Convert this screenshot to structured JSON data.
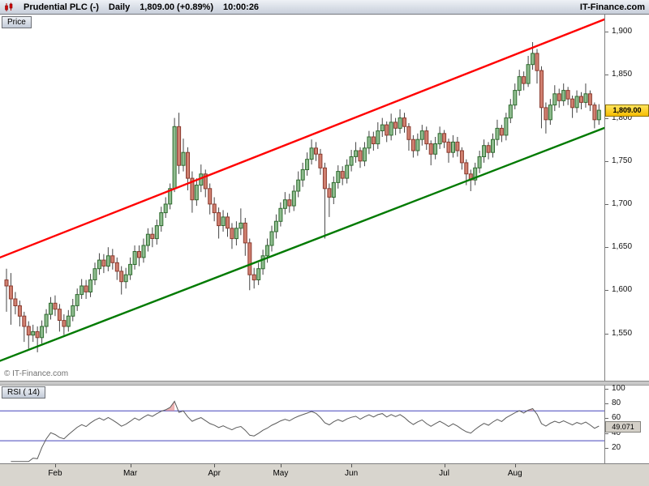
{
  "title_bar": {
    "instrument": "Prudential PLC (-)",
    "timeframe": "Daily",
    "quote": "1,809.00 (+0.89%)",
    "time": "10:00:26",
    "brand": "IT-Finance.com"
  },
  "price_panel": {
    "tab_label": "Price",
    "watermark": "© IT-Finance.com",
    "last_price_label": "1,809.00"
  },
  "rsi_panel": {
    "tab_label": "RSI ( 14)",
    "value_label": "49.071"
  },
  "colors": {
    "candle_up_fill": "#8fbc8f",
    "candle_up_border": "#2e6b2e",
    "candle_down_fill": "#d08070",
    "candle_down_border": "#8b3a2e",
    "wick": "#444444",
    "trend_resistance": "#ff0000",
    "trend_support": "#007a00",
    "rsi_line": "#5a5a5a",
    "rsi_zone": "#4444bb",
    "rsi_overbought": "rgba(226,128,128,0.6)",
    "badge_price_bg": "#fcbf00",
    "badge_rsi_bg": "#d4d0c8"
  },
  "chart_data": [
    {
      "type": "candlestick",
      "title": "Prudential PLC Daily price",
      "ylabel": "Price",
      "ylim": [
        1495,
        1920
      ],
      "grid": false,
      "yticks": [
        {
          "v": 1900,
          "label": "1,900"
        },
        {
          "v": 1850,
          "label": "1,850"
        },
        {
          "v": 1800,
          "label": "1,800"
        },
        {
          "v": 1750,
          "label": "1,750"
        },
        {
          "v": 1700,
          "label": "1,700"
        },
        {
          "v": 1650,
          "label": "1,650"
        },
        {
          "v": 1600,
          "label": "1,600"
        },
        {
          "v": 1550,
          "label": "1,550"
        }
      ],
      "xticks": [
        {
          "label": "Feb",
          "i": 11
        },
        {
          "label": "Mar",
          "i": 28
        },
        {
          "label": "Apr",
          "i": 47
        },
        {
          "label": "May",
          "i": 62
        },
        {
          "label": "Jun",
          "i": 78
        },
        {
          "label": "Jul",
          "i": 99
        },
        {
          "label": "Aug",
          "i": 115
        }
      ],
      "last_price": 1809.0,
      "trendlines": [
        {
          "name": "resistance",
          "color": "#ff0000",
          "from": {
            "i": -2,
            "price": 1637
          },
          "to": {
            "i": 136,
            "price": 1916
          }
        },
        {
          "name": "support",
          "color": "#007a00",
          "from": {
            "i": -2,
            "price": 1517
          },
          "to": {
            "i": 136,
            "price": 1790
          }
        }
      ],
      "candles": [
        [
          1612,
          1625,
          1575,
          1605
        ],
        [
          1605,
          1620,
          1560,
          1590
        ],
        [
          1590,
          1598,
          1572,
          1582
        ],
        [
          1582,
          1588,
          1558,
          1570
        ],
        [
          1570,
          1575,
          1540,
          1558
        ],
        [
          1558,
          1564,
          1532,
          1548
        ],
        [
          1548,
          1560,
          1540,
          1552
        ],
        [
          1552,
          1558,
          1528,
          1545
        ],
        [
          1545,
          1565,
          1538,
          1558
        ],
        [
          1558,
          1578,
          1550,
          1572
        ],
        [
          1572,
          1592,
          1566,
          1585
        ],
        [
          1585,
          1594,
          1570,
          1578
        ],
        [
          1578,
          1584,
          1552,
          1565
        ],
        [
          1565,
          1572,
          1548,
          1558
        ],
        [
          1558,
          1577,
          1552,
          1570
        ],
        [
          1570,
          1590,
          1564,
          1582
        ],
        [
          1582,
          1602,
          1576,
          1595
        ],
        [
          1595,
          1613,
          1590,
          1605
        ],
        [
          1605,
          1612,
          1590,
          1598
        ],
        [
          1598,
          1619,
          1592,
          1612
        ],
        [
          1612,
          1632,
          1606,
          1625
        ],
        [
          1625,
          1643,
          1618,
          1635
        ],
        [
          1635,
          1642,
          1620,
          1628
        ],
        [
          1628,
          1650,
          1622,
          1640
        ],
        [
          1640,
          1648,
          1624,
          1632
        ],
        [
          1632,
          1638,
          1612,
          1622
        ],
        [
          1622,
          1628,
          1595,
          1610
        ],
        [
          1610,
          1626,
          1602,
          1618
        ],
        [
          1618,
          1638,
          1612,
          1630
        ],
        [
          1630,
          1652,
          1624,
          1645
        ],
        [
          1645,
          1652,
          1628,
          1638
        ],
        [
          1638,
          1660,
          1632,
          1652
        ],
        [
          1652,
          1672,
          1645,
          1665
        ],
        [
          1665,
          1673,
          1650,
          1660
        ],
        [
          1660,
          1682,
          1653,
          1675
        ],
        [
          1675,
          1697,
          1668,
          1690
        ],
        [
          1690,
          1708,
          1684,
          1700
        ],
        [
          1700,
          1724,
          1694,
          1718
        ],
        [
          1718,
          1800,
          1714,
          1790
        ],
        [
          1790,
          1806,
          1735,
          1745
        ],
        [
          1745,
          1776,
          1738,
          1760
        ],
        [
          1760,
          1766,
          1716,
          1730
        ],
        [
          1730,
          1738,
          1690,
          1705
        ],
        [
          1705,
          1730,
          1698,
          1722
        ],
        [
          1722,
          1746,
          1714,
          1735
        ],
        [
          1735,
          1740,
          1708,
          1718
        ],
        [
          1718,
          1724,
          1688,
          1700
        ],
        [
          1700,
          1708,
          1680,
          1690
        ],
        [
          1690,
          1696,
          1660,
          1675
        ],
        [
          1675,
          1693,
          1668,
          1685
        ],
        [
          1685,
          1690,
          1662,
          1672
        ],
        [
          1672,
          1678,
          1648,
          1660
        ],
        [
          1660,
          1680,
          1652,
          1672
        ],
        [
          1672,
          1695,
          1664,
          1678
        ],
        [
          1678,
          1684,
          1640,
          1655
        ],
        [
          1655,
          1660,
          1600,
          1618
        ],
        [
          1618,
          1626,
          1602,
          1612
        ],
        [
          1612,
          1632,
          1606,
          1625
        ],
        [
          1625,
          1647,
          1618,
          1640
        ],
        [
          1640,
          1660,
          1632,
          1652
        ],
        [
          1652,
          1675,
          1645,
          1668
        ],
        [
          1668,
          1688,
          1660,
          1680
        ],
        [
          1680,
          1702,
          1674,
          1695
        ],
        [
          1695,
          1714,
          1688,
          1705
        ],
        [
          1705,
          1712,
          1690,
          1698
        ],
        [
          1698,
          1722,
          1692,
          1715
        ],
        [
          1715,
          1738,
          1708,
          1728
        ],
        [
          1728,
          1748,
          1720,
          1740
        ],
        [
          1740,
          1760,
          1733,
          1752
        ],
        [
          1752,
          1775,
          1746,
          1765
        ],
        [
          1765,
          1772,
          1750,
          1758
        ],
        [
          1758,
          1764,
          1734,
          1742
        ],
        [
          1742,
          1748,
          1660,
          1718
        ],
        [
          1718,
          1724,
          1685,
          1708
        ],
        [
          1708,
          1732,
          1700,
          1725
        ],
        [
          1725,
          1745,
          1718,
          1738
        ],
        [
          1738,
          1744,
          1722,
          1730
        ],
        [
          1730,
          1752,
          1724,
          1745
        ],
        [
          1745,
          1763,
          1738,
          1755
        ],
        [
          1755,
          1772,
          1748,
          1762
        ],
        [
          1762,
          1766,
          1742,
          1750
        ],
        [
          1750,
          1772,
          1744,
          1765
        ],
        [
          1765,
          1785,
          1758,
          1778
        ],
        [
          1778,
          1784,
          1762,
          1770
        ],
        [
          1770,
          1795,
          1764,
          1785
        ],
        [
          1785,
          1800,
          1778,
          1792
        ],
        [
          1792,
          1796,
          1772,
          1780
        ],
        [
          1780,
          1805,
          1774,
          1795
        ],
        [
          1795,
          1800,
          1780,
          1788
        ],
        [
          1788,
          1810,
          1782,
          1800
        ],
        [
          1800,
          1806,
          1783,
          1790
        ],
        [
          1790,
          1794,
          1762,
          1775
        ],
        [
          1775,
          1780,
          1754,
          1762
        ],
        [
          1762,
          1782,
          1756,
          1775
        ],
        [
          1775,
          1792,
          1768,
          1785
        ],
        [
          1785,
          1790,
          1763,
          1770
        ],
        [
          1770,
          1774,
          1745,
          1758
        ],
        [
          1758,
          1778,
          1752,
          1770
        ],
        [
          1770,
          1790,
          1764,
          1782
        ],
        [
          1782,
          1786,
          1765,
          1772
        ],
        [
          1772,
          1776,
          1748,
          1760
        ],
        [
          1760,
          1780,
          1754,
          1772
        ],
        [
          1772,
          1778,
          1755,
          1762
        ],
        [
          1762,
          1766,
          1740,
          1748
        ],
        [
          1748,
          1752,
          1722,
          1735
        ],
        [
          1735,
          1740,
          1715,
          1728
        ],
        [
          1728,
          1748,
          1722,
          1742
        ],
        [
          1742,
          1762,
          1736,
          1755
        ],
        [
          1755,
          1775,
          1748,
          1768
        ],
        [
          1768,
          1772,
          1752,
          1760
        ],
        [
          1760,
          1782,
          1754,
          1775
        ],
        [
          1775,
          1798,
          1768,
          1788
        ],
        [
          1788,
          1792,
          1772,
          1780
        ],
        [
          1780,
          1806,
          1774,
          1800
        ],
        [
          1800,
          1822,
          1794,
          1815
        ],
        [
          1815,
          1840,
          1810,
          1832
        ],
        [
          1832,
          1856,
          1826,
          1848
        ],
        [
          1848,
          1854,
          1832,
          1840
        ],
        [
          1840,
          1872,
          1836,
          1862
        ],
        [
          1862,
          1888,
          1856,
          1875
        ],
        [
          1875,
          1880,
          1840,
          1855
        ],
        [
          1855,
          1860,
          1788,
          1812
        ],
        [
          1812,
          1818,
          1782,
          1798
        ],
        [
          1798,
          1822,
          1792,
          1815
        ],
        [
          1815,
          1838,
          1808,
          1828
        ],
        [
          1828,
          1834,
          1812,
          1820
        ],
        [
          1820,
          1840,
          1814,
          1832
        ],
        [
          1832,
          1836,
          1815,
          1822
        ],
        [
          1822,
          1826,
          1800,
          1812
        ],
        [
          1812,
          1832,
          1806,
          1825
        ],
        [
          1825,
          1830,
          1810,
          1818
        ],
        [
          1818,
          1840,
          1812,
          1828
        ],
        [
          1828,
          1832,
          1808,
          1815
        ],
        [
          1815,
          1818,
          1788,
          1798
        ],
        [
          1798,
          1816,
          1792,
          1809
        ]
      ]
    },
    {
      "type": "line",
      "title": "RSI ( 14)",
      "period": 14,
      "values_computed_from": "candles closes",
      "ylim": [
        0,
        104
      ],
      "zones": [
        70,
        30
      ],
      "yticks": [
        {
          "v": 100,
          "label": "100"
        },
        {
          "v": 80,
          "label": "80"
        },
        {
          "v": 60,
          "label": "60"
        },
        {
          "v": 40,
          "label": "40"
        },
        {
          "v": 20,
          "label": "20"
        }
      ],
      "last_value": 49.071
    }
  ]
}
